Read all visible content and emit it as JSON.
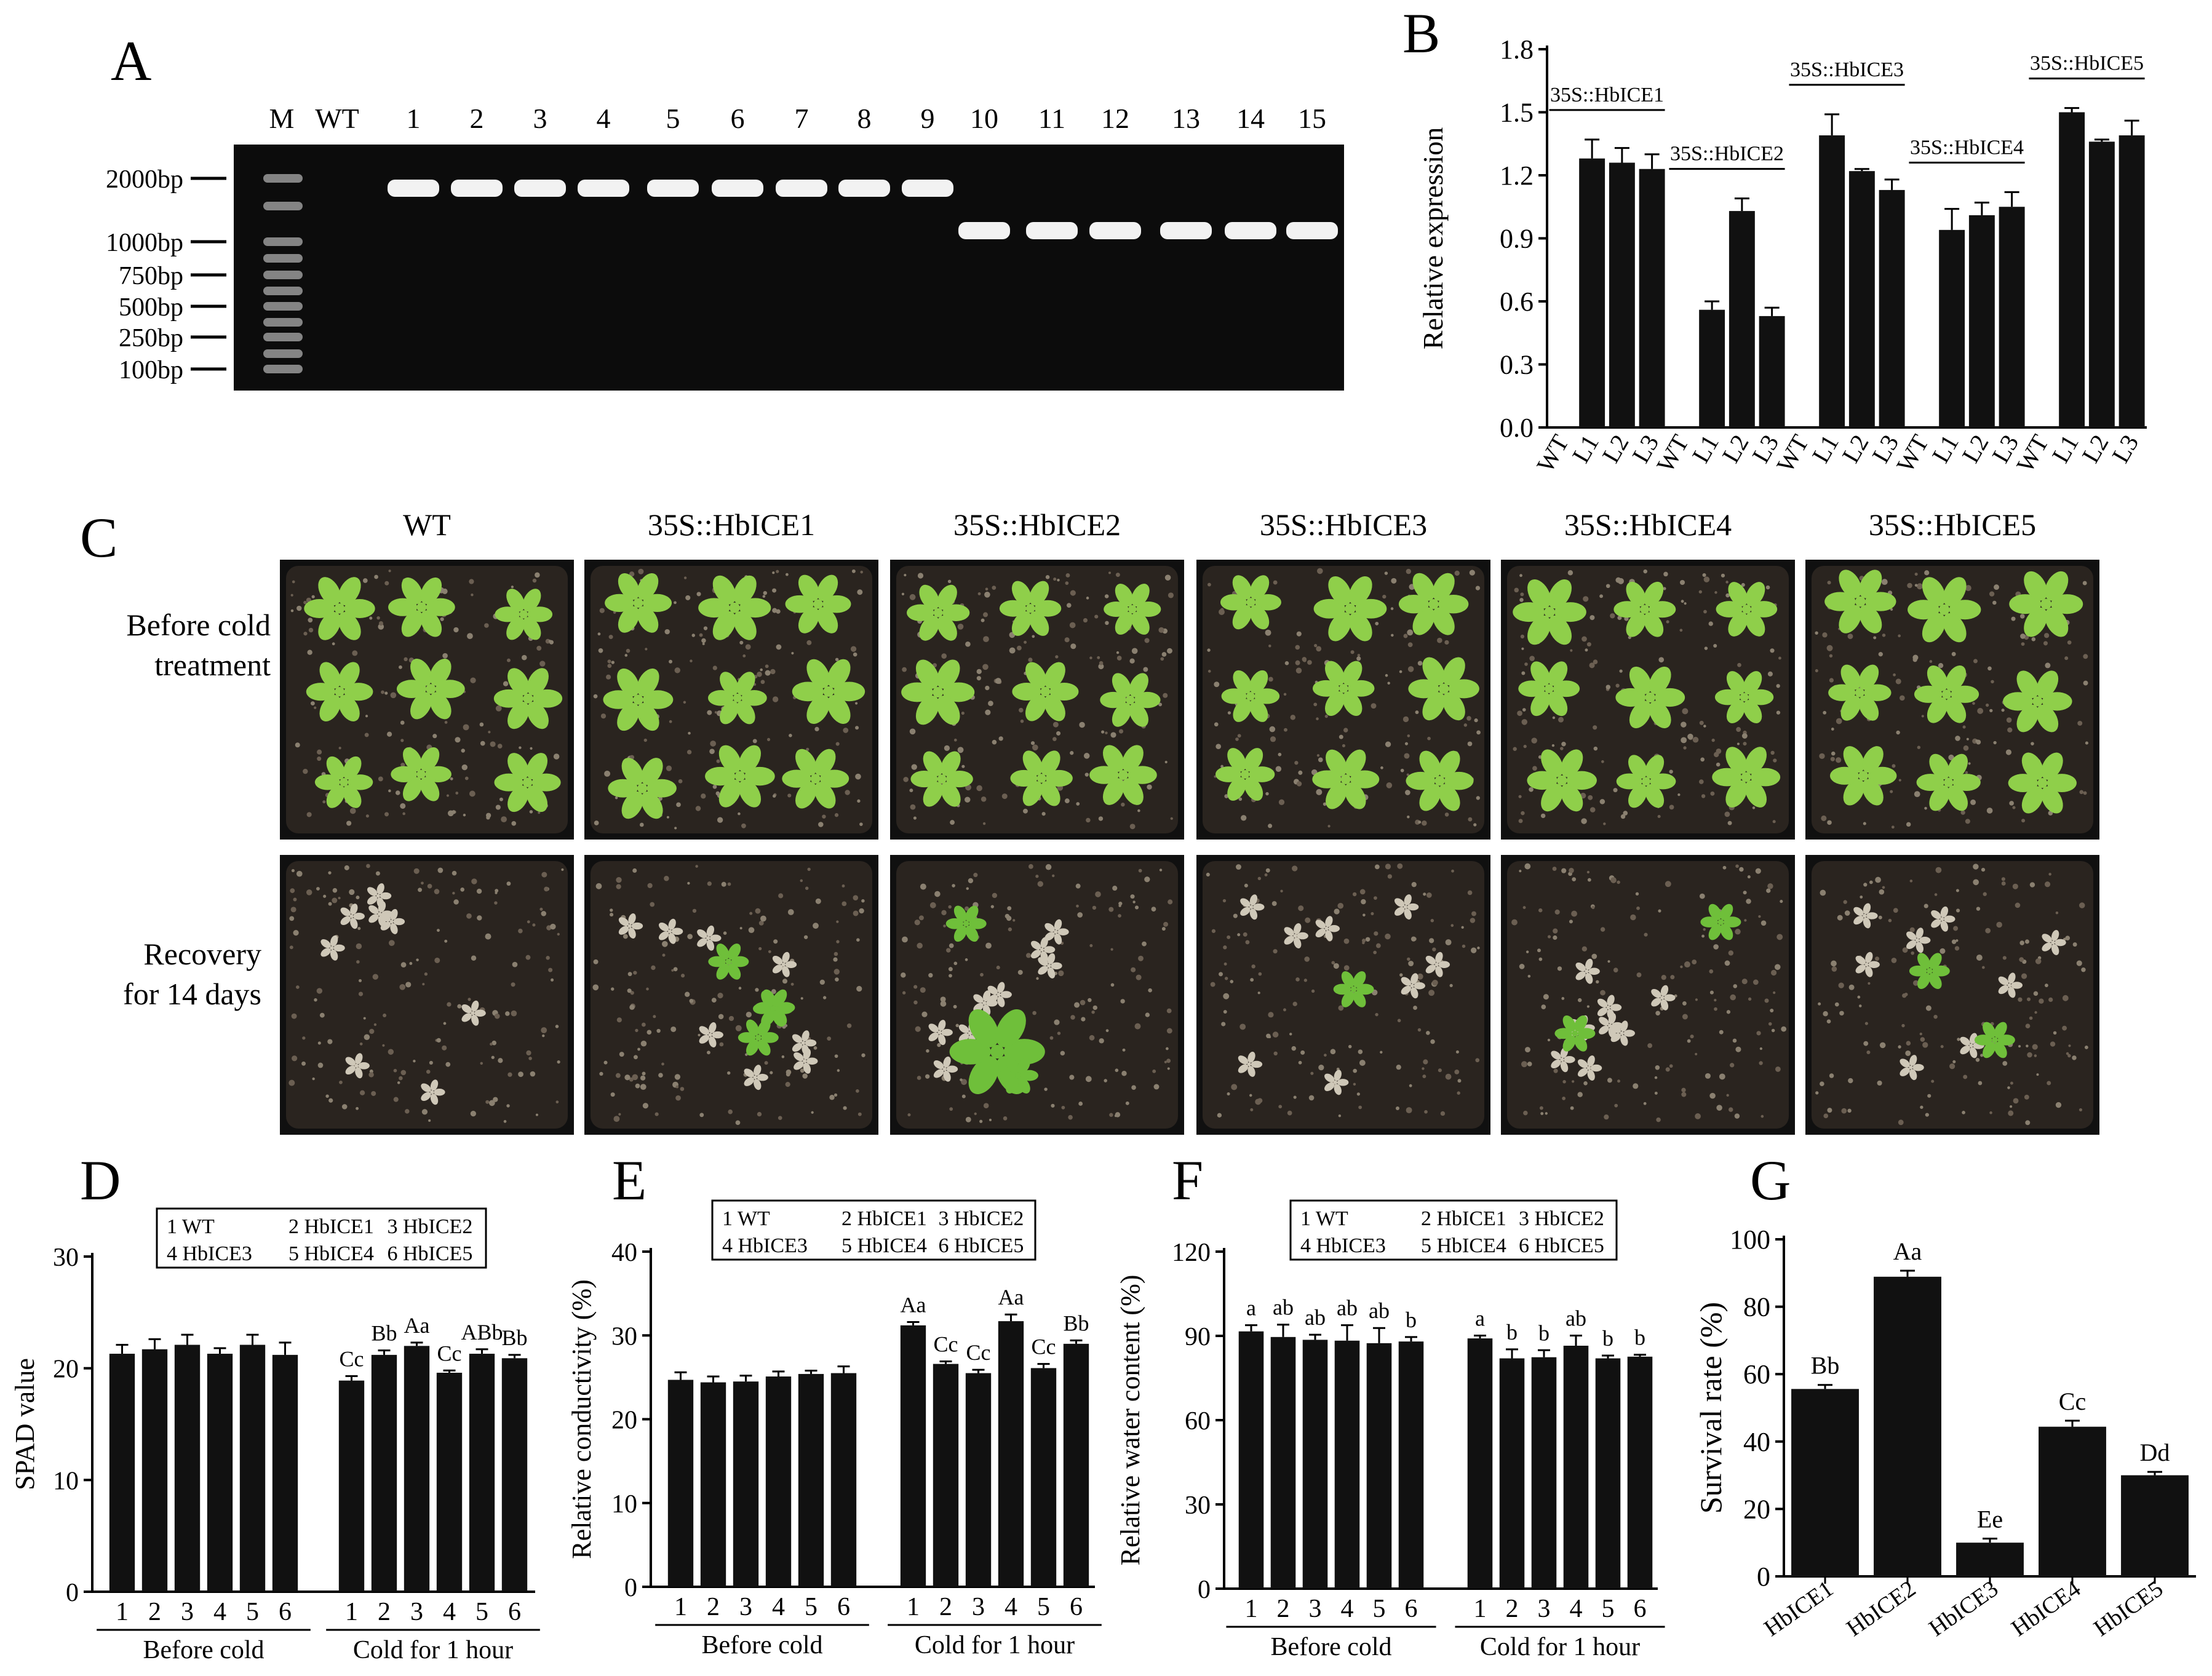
{
  "panel_letters": {
    "A": "A",
    "B": "B",
    "C": "C",
    "D": "D",
    "E": "E",
    "F": "F",
    "G": "G"
  },
  "colors": {
    "bar": "#111111",
    "gel_bg": "#0c0c0c",
    "band": "#f2f2f2",
    "soil": "#2a241f",
    "leaf": "#8fcf4a"
  },
  "panel_a": {
    "lane_labels": [
      "M",
      "WT",
      "1",
      "2",
      "3",
      "4",
      "5",
      "6",
      "7",
      "8",
      "9",
      "10",
      "11",
      "12",
      "13",
      "14",
      "15"
    ],
    "markers": [
      "2000bp",
      "1000bp",
      "750bp",
      "500bp",
      "250bp",
      "100bp"
    ],
    "band_size_bp": [
      null,
      null,
      2000,
      2000,
      2000,
      2000,
      2000,
      2000,
      2000,
      2000,
      2000,
      1200,
      1200,
      1200,
      1200,
      1200,
      1200
    ]
  },
  "panel_c": {
    "columns": [
      "WT",
      "35S::HbICE1",
      "35S::HbICE2",
      "35S::HbICE3",
      "35S::HbICE4",
      "35S::HbICE5"
    ],
    "row1_line1": "Before cold",
    "row1_line2": "treatment",
    "row2_line1": "Recovery",
    "row2_line2": "for 14 days"
  },
  "legend": {
    "l1": "1  WT",
    "l2": "2  HbICE1",
    "l3": "3  HbICE2",
    "l4": "4  HbICE3",
    "l5": "5  HbICE4",
    "l6": "6  HbICE5"
  },
  "chart_data": [
    {
      "panel": "B",
      "type": "bar",
      "ylabel": "Relative expression",
      "ylim": [
        0,
        1.8
      ],
      "yticks": [
        "0.0",
        "0.3",
        "0.6",
        "0.9",
        "1.2",
        "1.5",
        "1.8"
      ],
      "groups": [
        {
          "name": "35S::HbICE1",
          "categories": [
            "WT",
            "L1",
            "L2",
            "L3"
          ],
          "values": [
            0,
            1.28,
            1.26,
            1.23
          ],
          "errors": [
            0,
            0.09,
            0.07,
            0.07
          ]
        },
        {
          "name": "35S::HbICE2",
          "categories": [
            "WT",
            "L1",
            "L2",
            "L3"
          ],
          "values": [
            0,
            0.56,
            1.03,
            0.53
          ],
          "errors": [
            0,
            0.04,
            0.06,
            0.04
          ]
        },
        {
          "name": "35S::HbICE3",
          "categories": [
            "WT",
            "L1",
            "L2",
            "L3"
          ],
          "values": [
            0,
            1.39,
            1.22,
            1.13
          ],
          "errors": [
            0,
            0.1,
            0.01,
            0.05
          ]
        },
        {
          "name": "35S::HbICE4",
          "categories": [
            "WT",
            "L1",
            "L2",
            "L3"
          ],
          "values": [
            0,
            0.94,
            1.01,
            1.05
          ],
          "errors": [
            0,
            0.1,
            0.06,
            0.07
          ]
        },
        {
          "name": "35S::HbICE5",
          "categories": [
            "WT",
            "L1",
            "L2",
            "L3"
          ],
          "values": [
            0,
            1.5,
            1.36,
            1.39
          ],
          "errors": [
            0,
            0.02,
            0.01,
            0.07
          ]
        }
      ]
    },
    {
      "panel": "D",
      "type": "bar",
      "ylabel": "SPAD value",
      "ylim": [
        0,
        30
      ],
      "yticks": [
        "0",
        "10",
        "20",
        "30"
      ],
      "groups": [
        {
          "name": "Before cold",
          "categories": [
            "1",
            "2",
            "3",
            "4",
            "5",
            "6"
          ],
          "values": [
            21.3,
            21.7,
            22.1,
            21.3,
            22.1,
            21.2
          ],
          "errors": [
            0.8,
            0.9,
            0.9,
            0.5,
            0.9,
            1.1
          ],
          "labels": [
            "",
            "",
            "",
            "",
            "",
            ""
          ]
        },
        {
          "name": "Cold for 1 hour",
          "categories": [
            "1",
            "2",
            "3",
            "4",
            "5",
            "6"
          ],
          "values": [
            18.9,
            21.2,
            22.0,
            19.6,
            21.3,
            20.9
          ],
          "errors": [
            0.4,
            0.4,
            0.3,
            0.2,
            0.4,
            0.3
          ],
          "labels": [
            "Cc",
            "Bb",
            "Aa",
            "Cc",
            "ABb",
            "Bb"
          ]
        }
      ]
    },
    {
      "panel": "E",
      "type": "bar",
      "ylabel": "Relative conductivity (%)",
      "ylim": [
        0,
        40
      ],
      "yticks": [
        "0",
        "10",
        "20",
        "30",
        "40"
      ],
      "groups": [
        {
          "name": "Before cold",
          "categories": [
            "1",
            "2",
            "3",
            "4",
            "5",
            "6"
          ],
          "values": [
            24.7,
            24.4,
            24.5,
            25.1,
            25.4,
            25.5
          ],
          "errors": [
            0.9,
            0.7,
            0.7,
            0.6,
            0.4,
            0.8
          ],
          "labels": [
            "",
            "",
            "",
            "",
            "",
            ""
          ]
        },
        {
          "name": "Cold for 1 hour",
          "categories": [
            "1",
            "2",
            "3",
            "4",
            "5",
            "6"
          ],
          "values": [
            31.2,
            26.6,
            25.5,
            31.7,
            26.1,
            29.0
          ],
          "errors": [
            0.4,
            0.3,
            0.4,
            0.8,
            0.5,
            0.4
          ],
          "labels": [
            "Aa",
            "Cc",
            "Cc",
            "Aa",
            "Cc",
            "Bb"
          ]
        }
      ]
    },
    {
      "panel": "F",
      "type": "bar",
      "ylabel": "Relative water content (%)",
      "ylim": [
        0,
        120
      ],
      "yticks": [
        "0",
        "30",
        "60",
        "90",
        "120"
      ],
      "groups": [
        {
          "name": "Before cold",
          "categories": [
            "1",
            "2",
            "3",
            "4",
            "5",
            "6"
          ],
          "values": [
            91.6,
            89.6,
            88.6,
            88.3,
            87.4,
            88.0
          ],
          "errors": [
            2.2,
            4.4,
            1.8,
            5.5,
            5.4,
            1.6
          ],
          "labels": [
            "a",
            "ab",
            "ab",
            "ab",
            "ab",
            "b"
          ]
        },
        {
          "name": "Cold for 1 hour",
          "categories": [
            "1",
            "2",
            "3",
            "4",
            "5",
            "6"
          ],
          "values": [
            89.1,
            82.0,
            82.4,
            86.5,
            82.0,
            82.6
          ],
          "errors": [
            1.0,
            3.2,
            2.5,
            3.6,
            1.0,
            0.7
          ],
          "labels": [
            "a",
            "b",
            "b",
            "ab",
            "b",
            "b"
          ]
        }
      ]
    },
    {
      "panel": "G",
      "type": "bar",
      "ylabel": "Survival rate (%)",
      "ylim": [
        0,
        100
      ],
      "yticks": [
        "0",
        "20",
        "40",
        "60",
        "80",
        "100"
      ],
      "categories": [
        "HbICE1",
        "HbICE2",
        "HbICE3",
        "HbICE4",
        "HbICE5"
      ],
      "values": [
        55.6,
        88.9,
        10.0,
        44.4,
        30.0
      ],
      "errors": [
        1.2,
        1.8,
        1.2,
        1.8,
        1.0
      ],
      "labels": [
        "Bb",
        "Aa",
        "Ee",
        "Cc",
        "Dd"
      ]
    }
  ]
}
